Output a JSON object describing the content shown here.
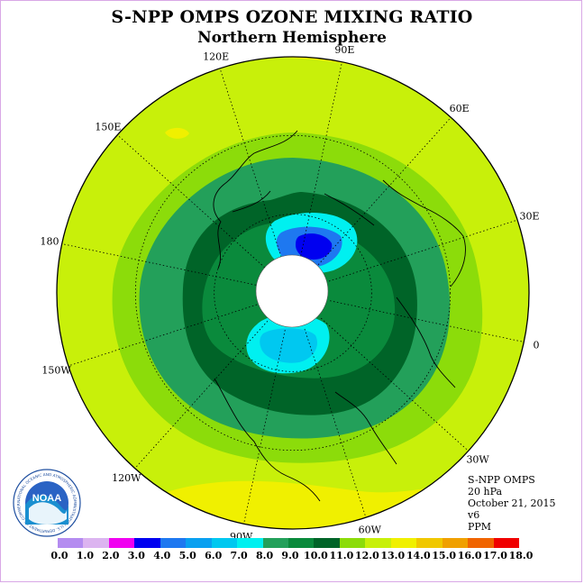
{
  "title": "S-NPP OMPS OZONE MIXING RATIO",
  "subtitle": "Northern Hemisphere",
  "longitude_labels": [
    "90E",
    "60E",
    "30E",
    "0",
    "30W",
    "60W",
    "90W",
    "120W",
    "150W",
    "180",
    "150E",
    "120E"
  ],
  "info": {
    "instrument": "S-NPP OMPS",
    "pressure": "20 hPa",
    "date": "October 21, 2015",
    "version": "v6",
    "units": "PPM"
  },
  "logo": {
    "name": "NOAA",
    "ring_text": "NATIONAL OCEANIC AND ATMOSPHERIC ADMINISTRATION U.S. DEPARTMENT OF COMMERCE"
  },
  "colorbar": {
    "labels": [
      "0.0",
      "1.0",
      "2.0",
      "3.0",
      "4.0",
      "5.0",
      "6.0",
      "7.0",
      "8.0",
      "9.0",
      "10.0",
      "11.0",
      "12.0",
      "13.0",
      "14.0",
      "15.0",
      "16.0",
      "17.0",
      "18.0"
    ],
    "colors": [
      "#b48cf0",
      "#dcb4f0",
      "#f000f0",
      "#0000f0",
      "#1e78f0",
      "#0aa0f0",
      "#00c8f0",
      "#00f0f0",
      "#23a05a",
      "#0a8a3c",
      "#006428",
      "#8cdc0a",
      "#c8f00a",
      "#f0f000",
      "#f0c800",
      "#f0a000",
      "#f06400",
      "#f00000",
      "#8c5a3c"
    ]
  },
  "map_colors": {
    "ozone_11_12": "#8cdc0a",
    "ozone_12_13": "#c8f00a",
    "ozone_13_14": "#f0f000",
    "ozone_9_10": "#0a8a3c",
    "ozone_8_9": "#23a05a",
    "ozone_10_11": "#006428",
    "ozone_7_8": "#00f0f0",
    "ozone_6_7": "#00c8f0",
    "ozone_4_5": "#1e78f0",
    "ozone_3_4": "#0000f0",
    "no_data": "#ffffff"
  }
}
